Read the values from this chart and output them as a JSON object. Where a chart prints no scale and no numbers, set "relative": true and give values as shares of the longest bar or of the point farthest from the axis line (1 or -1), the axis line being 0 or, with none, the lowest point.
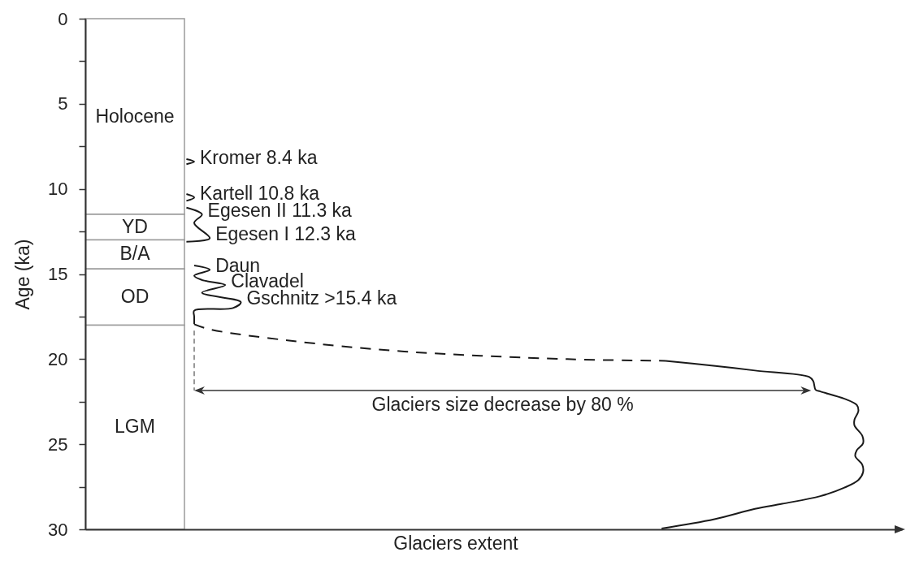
{
  "chart_data": {
    "type": "line",
    "orientation": "horizontal",
    "relative": true,
    "xlabel": "Glaciers extent",
    "ylabel": "Age (ka)",
    "ylim": [
      30,
      0
    ],
    "yticks": [
      0,
      {
        "value": 2.5,
        "label": null
      },
      5,
      {
        "value": 7.5,
        "label": null
      },
      10,
      {
        "value": 12.5,
        "label": null
      },
      15,
      {
        "value": 17.5,
        "label": null
      },
      20,
      {
        "value": 22.5,
        "label": null
      },
      25,
      {
        "value": 27.5,
        "label": null
      },
      30
    ],
    "bands": [
      {
        "axis": "y",
        "from": 0,
        "to": 11.5,
        "label": "Holocene"
      },
      {
        "axis": "y",
        "from": 11.5,
        "to": 13,
        "label": "YD"
      },
      {
        "axis": "y",
        "from": 13,
        "to": 14.7,
        "label": "B/A"
      },
      {
        "axis": "y",
        "from": 14.7,
        "to": 18,
        "label": "OD"
      },
      {
        "axis": "y",
        "from": 18,
        "to": 30,
        "label": "LGM"
      }
    ],
    "series": [
      {
        "color": "#1a1a1a",
        "x": [
          8.25,
          8.4,
          8.55,
          9.5,
          10.3,
          10.5,
          10.7,
          10.9,
          11.1,
          11.5,
          12.0,
          12.9,
          13.1,
          13.8,
          14.5,
          14.75,
          15.1,
          15.35,
          15.65,
          16.1,
          16.65,
          17.0,
          17.15,
          17.5,
          17.95,
          19.0,
          20.1,
          20.4,
          20.67,
          21.05,
          21.3,
          21.8,
          21.9,
          22.33,
          22.7,
          23.05,
          23.55,
          23.9,
          24.5,
          24.95,
          25.35,
          25.7,
          26.2,
          26.65,
          27.1,
          27.55,
          28.05,
          28.5,
          28.8,
          29.4,
          29.95
        ],
        "values": [
          0.13,
          0.14,
          0.13,
          null,
          0.13,
          0.14,
          0.13,
          null,
          0.13,
          0.15,
          0.14,
          0.16,
          0.13,
          null,
          0.14,
          0.16,
          0.14,
          0.15,
          0.18,
          0.15,
          0.2,
          0.19,
          0.14,
          0.14,
          0.14,
          null,
          0.746,
          0.81,
          0.861,
          0.931,
          0.936,
          0.939,
          0.945,
          0.976,
          0.992,
          0.994,
          0.989,
          0.989,
          0.999,
          1.0,
          0.992,
          0.99,
          0.999,
          1.0,
          0.994,
          0.976,
          0.945,
          0.896,
          0.861,
          0.809,
          0.741
        ]
      },
      {
        "color": "#1a1a1a",
        "line_style": "dashed",
        "x": [
          17.95,
          18.25,
          18.9,
          19.55,
          20.0,
          20.1
        ],
        "values": [
          0.14,
          0.16,
          0.26,
          0.41,
          0.62,
          0.746
        ]
      }
    ],
    "annotations": [
      {
        "text": "Kromer 8.4 ka",
        "x": 0.14,
        "y": 8.4
      },
      {
        "text": "Kartell 10.8 ka",
        "x": 0.14,
        "y": 10.5
      },
      {
        "text": "Egesen II 11.3 ka",
        "x": 0.15,
        "y": 11.5
      },
      {
        "text": "Egesen I 12.3 ka",
        "x": 0.16,
        "y": 12.9
      },
      {
        "text": "Daun",
        "x": 0.16,
        "y": 14.75
      },
      {
        "text": "Clavadel",
        "x": 0.18,
        "y": 15.65
      },
      {
        "text": "Gschnitz >15.4 ka",
        "x": 0.2,
        "y": 16.65
      },
      "Glaciers size decrease by 80 %"
    ]
  }
}
